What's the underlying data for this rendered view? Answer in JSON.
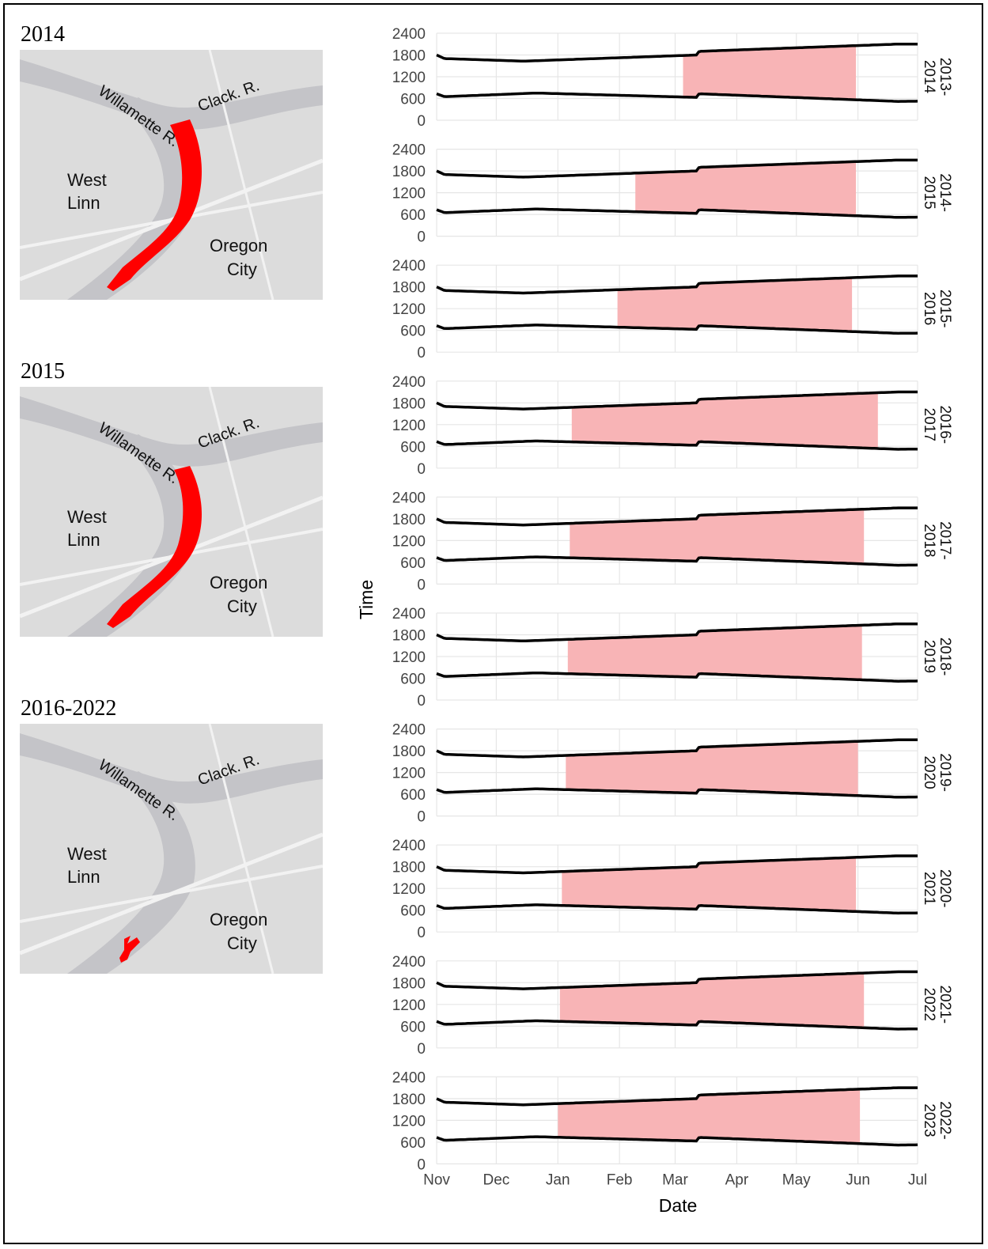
{
  "maps": [
    {
      "label": "2014",
      "river": "Willamette R.",
      "tributary": "Clack. R.",
      "west": [
        "West",
        "Linn"
      ],
      "east": [
        "Oregon",
        "City"
      ],
      "extent": "full"
    },
    {
      "label": "2015",
      "river": "Willamette R.",
      "tributary": "Clack. R.",
      "west": [
        "West",
        "Linn"
      ],
      "east": [
        "Oregon",
        "City"
      ],
      "extent": "full"
    },
    {
      "label": "2016-2022",
      "river": "Willamette R.",
      "tributary": "Clack. R.",
      "west": [
        "West",
        "Linn"
      ],
      "east": [
        "Oregon",
        "City"
      ],
      "extent": "small"
    }
  ],
  "colors": {
    "shade": "#f8b4b6",
    "line": "#000000",
    "grid": "#e6e6e6",
    "closure": "#ff0000",
    "land": "#dcdcdc",
    "water": "#c4c4c8",
    "road": "#f2f2f2"
  },
  "chart_data": {
    "type": "area",
    "xlabel": "Date",
    "ylabel": "Time",
    "x_ticks": [
      "Nov",
      "Dec",
      "Jan",
      "Feb",
      "Mar",
      "Apr",
      "May",
      "Jun",
      "Jul"
    ],
    "x_tick_dates": [
      "11-01",
      "12-01",
      "01-01",
      "02-01",
      "03-01",
      "04-01",
      "05-01",
      "06-01",
      "07-01"
    ],
    "y_ticks": [
      0,
      600,
      1200,
      1800,
      2400
    ],
    "ylim": [
      0,
      2400
    ],
    "grid": true,
    "panels": [
      {
        "label": [
          "2013-",
          "2014"
        ],
        "start": "2014-03-05",
        "end": "2014-05-31"
      },
      {
        "label": [
          "2014-",
          "2015"
        ],
        "start": "2015-02-09",
        "end": "2015-05-31"
      },
      {
        "label": [
          "2015-",
          "2016"
        ],
        "start": "2016-01-31",
        "end": "2016-05-29"
      },
      {
        "label": [
          "2016-",
          "2017"
        ],
        "start": "2017-01-08",
        "end": "2017-06-11"
      },
      {
        "label": [
          "2017-",
          "2018"
        ],
        "start": "2018-01-07",
        "end": "2018-06-04"
      },
      {
        "label": [
          "2018-",
          "2019"
        ],
        "start": "2019-01-06",
        "end": "2019-06-03"
      },
      {
        "label": [
          "2019-",
          "2020"
        ],
        "start": "2020-01-05",
        "end": "2020-06-01"
      },
      {
        "label": [
          "2020-",
          "2021"
        ],
        "start": "2021-01-03",
        "end": "2021-05-31"
      },
      {
        "label": [
          "2021-",
          "2022"
        ],
        "start": "2022-01-02",
        "end": "2022-06-04"
      },
      {
        "label": [
          "2022-",
          "2023"
        ],
        "start": "2023-01-01",
        "end": "2023-06-02"
      }
    ],
    "sunrise": [
      [
        "11-01",
        730
      ],
      [
        "11-05",
        650
      ],
      [
        "12-21",
        750
      ],
      [
        "03-12",
        630
      ],
      [
        "03-13",
        730
      ],
      [
        "06-21",
        520
      ],
      [
        "07-01",
        525
      ]
    ],
    "sunset": [
      [
        "11-01",
        1800
      ],
      [
        "11-05",
        1700
      ],
      [
        "12-15",
        1630
      ],
      [
        "03-12",
        1800
      ],
      [
        "03-13",
        1900
      ],
      [
        "06-21",
        2100
      ],
      [
        "07-01",
        2100
      ]
    ]
  }
}
